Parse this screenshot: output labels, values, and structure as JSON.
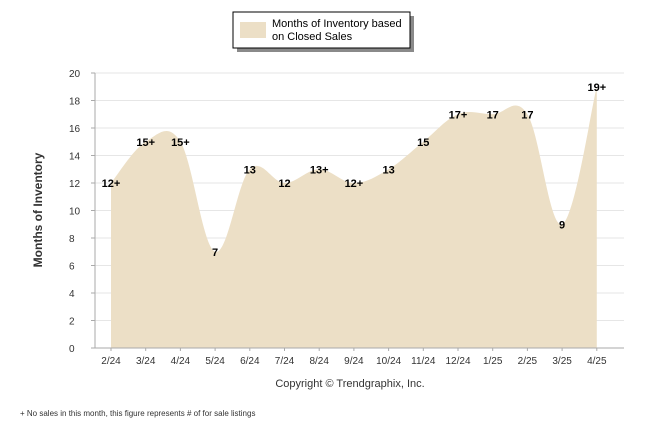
{
  "chart_data": {
    "type": "area",
    "categories": [
      "2/24",
      "3/24",
      "4/24",
      "5/24",
      "6/24",
      "7/24",
      "8/24",
      "9/24",
      "10/24",
      "11/24",
      "12/24",
      "1/25",
      "2/25",
      "3/25",
      "4/25"
    ],
    "series": [
      {
        "name": "Months of Inventory based on Closed Sales",
        "values": [
          12,
          15,
          15,
          7,
          13,
          12,
          13,
          12,
          13,
          15,
          17,
          17,
          17,
          9,
          19
        ],
        "labels": [
          "12+",
          "15+",
          "15+",
          "7",
          "13",
          "12",
          "13+",
          "12+",
          "13",
          "15",
          "17+",
          "17",
          "17",
          "9",
          "19+"
        ]
      }
    ],
    "ylabel": "Months of Inventory",
    "xlabel": "",
    "ylim": [
      0,
      20
    ],
    "yticks": [
      0,
      2,
      4,
      6,
      8,
      10,
      12,
      14,
      16,
      18,
      20
    ],
    "grid": true,
    "legend_position": "top-center",
    "colors": {
      "fill": "#ecdfc6",
      "legend_border": "#000000",
      "grid": "#e6e6e6",
      "axis": "#aaaaaa"
    }
  },
  "legend": {
    "line1": "Months of Inventory based",
    "line2": "on Closed Sales"
  },
  "copyright": "Copyright © Trendgraphix, Inc.",
  "footnote": "+  No sales in this month, this figure represents # of for sale listings"
}
